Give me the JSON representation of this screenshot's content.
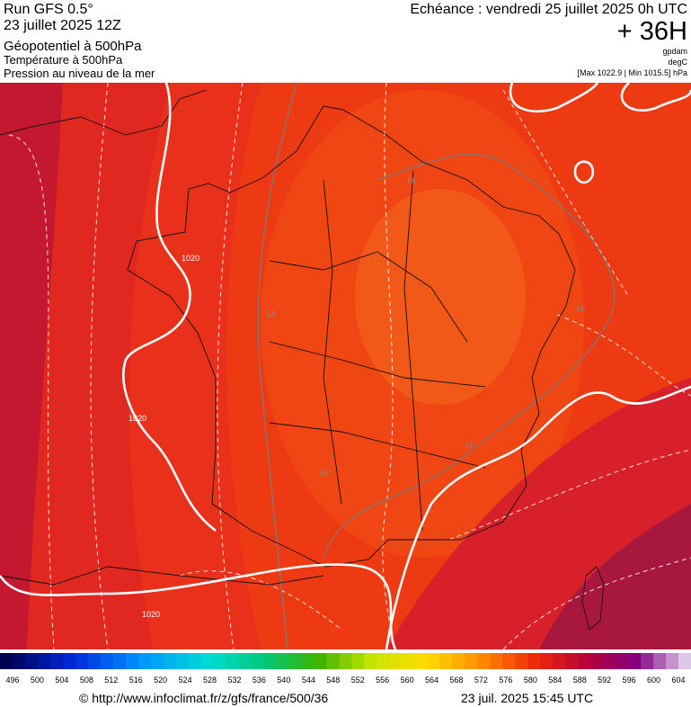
{
  "header": {
    "title": "Run GFS 0.5°",
    "run": "23 juillet 2025 12Z",
    "param1": "Géopotentiel à 500hPa",
    "param2": "Température à 500hPa",
    "param3": "Pression au niveau de la mer",
    "echeance": "Echéance : vendredi 25 juillet 2025 0h UTC",
    "offset": "+ 36H",
    "unit1": "gpdam",
    "unit2": "degC",
    "pressure_range": "[Max 1022.9 | Min 1015.5] hPa"
  },
  "map": {
    "isobar_labels": [
      "1020",
      "1020",
      "1020"
    ],
    "isotherm_labels": [
      "16",
      "16",
      "16",
      "16",
      "16"
    ]
  },
  "legend": {
    "labels": [
      496,
      500,
      504,
      508,
      512,
      516,
      520,
      524,
      528,
      532,
      536,
      540,
      544,
      548,
      552,
      556,
      560,
      564,
      568,
      572,
      576,
      580,
      584,
      588,
      592,
      596,
      600,
      604
    ]
  },
  "footer": {
    "url": "© http://www.infoclimat.fr/z/gfs/france/500/36",
    "timestamp": "23 juil. 2025 15:45 UTC"
  }
}
